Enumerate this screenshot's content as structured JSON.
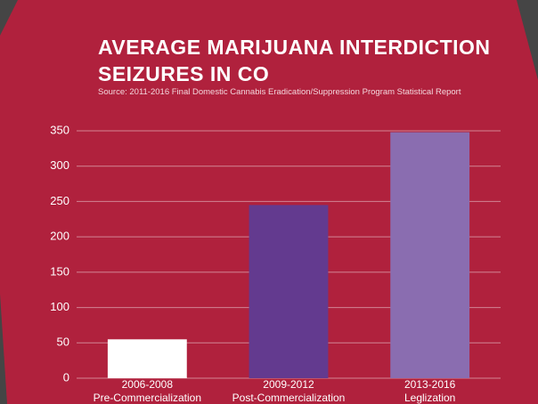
{
  "chart_data": {
    "type": "bar",
    "title": "AVERAGE MARIJUANA INTERDICTION SEIZURES IN CO",
    "subtitle": "Source: 2011-2016 Final Domestic Cannabis Eradication/Suppression Program Statistical Report",
    "categories": [
      [
        "2006-2008",
        "Pre-Commercialization"
      ],
      [
        "2009-2012",
        "Post-Commercialization"
      ],
      [
        "2013-2016",
        "Leglization"
      ]
    ],
    "values": [
      55,
      245,
      348
    ],
    "colors": [
      "#ffffff",
      "#633a8f",
      "#8a6db0"
    ],
    "ylim": [
      0,
      350
    ],
    "yticks": [
      0,
      50,
      100,
      150,
      200,
      250,
      300,
      350
    ],
    "grid": true
  }
}
